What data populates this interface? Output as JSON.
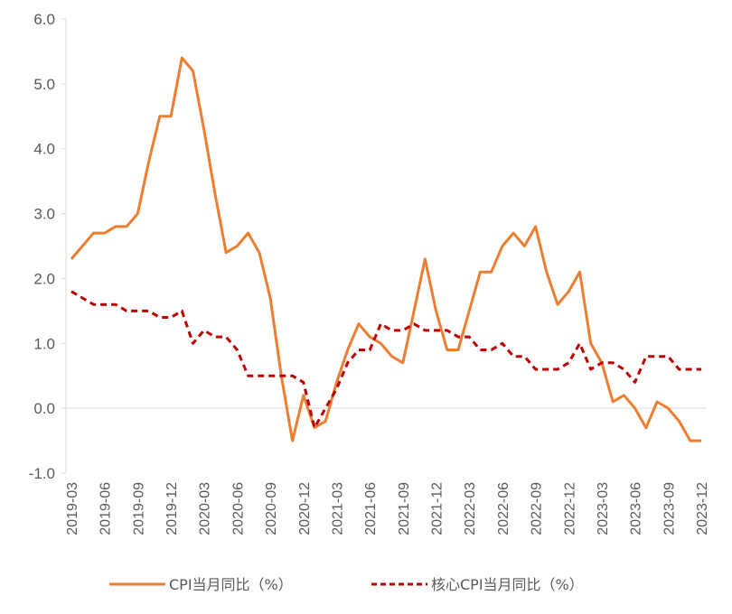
{
  "chart_data": {
    "type": "line",
    "title": "",
    "xlabel": "",
    "ylabel": "",
    "ylim": [
      -1.0,
      6.0
    ],
    "yticks": [
      "6.0",
      "5.0",
      "4.0",
      "3.0",
      "2.0",
      "1.0",
      "0.0",
      "-1.0"
    ],
    "grid": false,
    "legend_position": "bottom",
    "x": [
      "2019-03",
      "2019-04",
      "2019-05",
      "2019-06",
      "2019-07",
      "2019-08",
      "2019-09",
      "2019-10",
      "2019-11",
      "2019-12",
      "2020-01",
      "2020-02",
      "2020-03",
      "2020-04",
      "2020-05",
      "2020-06",
      "2020-07",
      "2020-08",
      "2020-09",
      "2020-10",
      "2020-11",
      "2020-12",
      "2021-01",
      "2021-02",
      "2021-03",
      "2021-04",
      "2021-05",
      "2021-06",
      "2021-07",
      "2021-08",
      "2021-09",
      "2021-10",
      "2021-11",
      "2021-12",
      "2022-01",
      "2022-02",
      "2022-03",
      "2022-04",
      "2022-05",
      "2022-06",
      "2022-07",
      "2022-08",
      "2022-09",
      "2022-10",
      "2022-11",
      "2022-12",
      "2023-01",
      "2023-02",
      "2023-03",
      "2023-04",
      "2023-05",
      "2023-06",
      "2023-07",
      "2023-08",
      "2023-09",
      "2023-10",
      "2023-11",
      "2023-12"
    ],
    "x_tick_labels": [
      "2019-03",
      "2019-06",
      "2019-09",
      "2019-12",
      "2020-03",
      "2020-06",
      "2020-09",
      "2020-12",
      "2021-03",
      "2021-06",
      "2021-09",
      "2021-12",
      "2022-03",
      "2022-06",
      "2022-09",
      "2022-12",
      "2023-03",
      "2023-06",
      "2023-09",
      "2023-12"
    ],
    "series": [
      {
        "name": "CPI当月同比（%）",
        "color": "#ED7D31",
        "style": "solid",
        "values": [
          2.3,
          2.5,
          2.7,
          2.7,
          2.8,
          2.8,
          3.0,
          3.8,
          4.5,
          4.5,
          5.4,
          5.2,
          4.3,
          3.3,
          2.4,
          2.5,
          2.7,
          2.4,
          1.7,
          0.5,
          -0.5,
          0.2,
          -0.3,
          -0.2,
          0.4,
          0.9,
          1.3,
          1.1,
          1.0,
          0.8,
          0.7,
          1.5,
          2.3,
          1.5,
          0.9,
          0.9,
          1.5,
          2.1,
          2.1,
          2.5,
          2.7,
          2.5,
          2.8,
          2.1,
          1.6,
          1.8,
          2.1,
          1.0,
          0.7,
          0.1,
          0.2,
          0.0,
          -0.3,
          0.1,
          0.0,
          -0.2,
          -0.5,
          -0.5
        ]
      },
      {
        "name": "核心CPI当月同比（%）",
        "color": "#C00000",
        "style": "dashed",
        "values": [
          1.8,
          1.7,
          1.6,
          1.6,
          1.6,
          1.5,
          1.5,
          1.5,
          1.4,
          1.4,
          1.5,
          1.0,
          1.2,
          1.1,
          1.1,
          0.9,
          0.5,
          0.5,
          0.5,
          0.5,
          0.5,
          0.4,
          -0.3,
          0.0,
          0.3,
          0.7,
          0.9,
          0.9,
          1.3,
          1.2,
          1.2,
          1.3,
          1.2,
          1.2,
          1.2,
          1.1,
          1.1,
          0.9,
          0.9,
          1.0,
          0.8,
          0.8,
          0.6,
          0.6,
          0.6,
          0.7,
          1.0,
          0.6,
          0.7,
          0.7,
          0.6,
          0.4,
          0.8,
          0.8,
          0.8,
          0.6,
          0.6,
          0.6
        ]
      }
    ]
  }
}
